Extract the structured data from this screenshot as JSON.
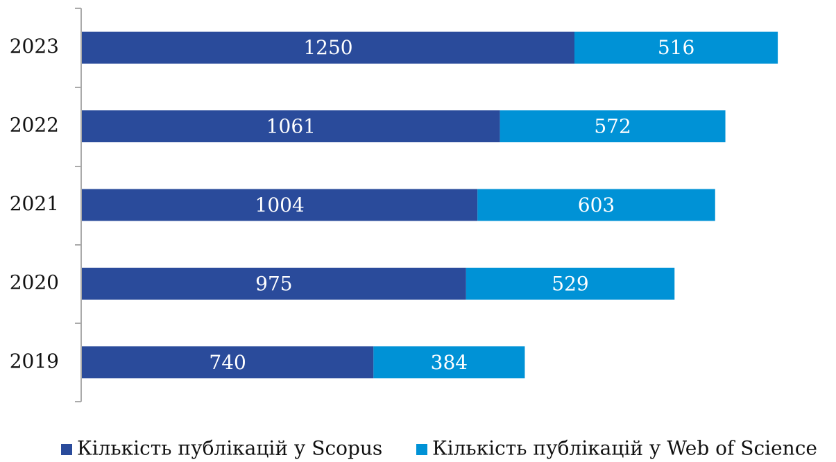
{
  "chart_data": {
    "type": "stacked-bar-horizontal",
    "categories": [
      "2023",
      "2022",
      "2021",
      "2020",
      "2019"
    ],
    "series": [
      {
        "name": "Кількість публікацій у Scopus",
        "color": "#2a4b9b",
        "values": [
          1250,
          1061,
          1004,
          975,
          740
        ]
      },
      {
        "name": "Кількість публікацій у Web of Science",
        "color": "#0092d6",
        "values": [
          516,
          572,
          603,
          529,
          384
        ]
      }
    ],
    "legend": "bottom"
  }
}
